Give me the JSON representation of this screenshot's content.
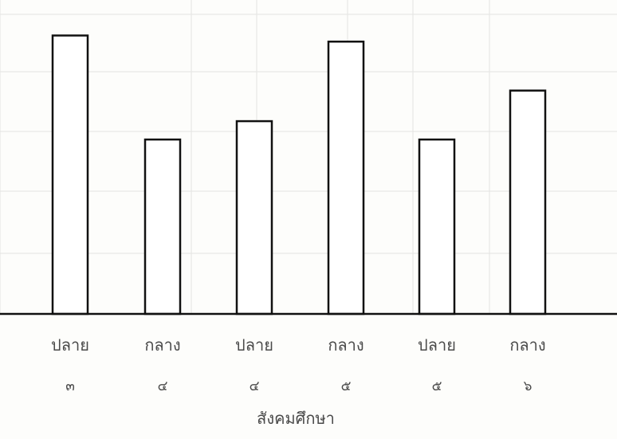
{
  "chart_data": {
    "type": "bar",
    "categories": [
      "ปลาย ๓",
      "กลาง ๔",
      "ปลาย ๔",
      "กลาง ๕",
      "ปลาย ๕",
      "กลาง ๖"
    ],
    "category_lines": [
      [
        "ปลาย",
        "๓"
      ],
      [
        "กลาง",
        "๔"
      ],
      [
        "ปลาย",
        "๔"
      ],
      [
        "กลาง",
        "๕"
      ],
      [
        "ปลาย",
        "๕"
      ],
      [
        "กลาง",
        "๖"
      ]
    ],
    "values": [
      91,
      57,
      63,
      89,
      57,
      73
    ],
    "ylim": [
      0,
      100
    ],
    "xlabel": "สังคมศึกษา",
    "ylabel": "",
    "title": "",
    "grid": true,
    "colors": {
      "bar_fill": "#ffffff",
      "bar_stroke": "#111111",
      "grid": "#e4e4e2",
      "text": "#4a4a4a"
    }
  }
}
